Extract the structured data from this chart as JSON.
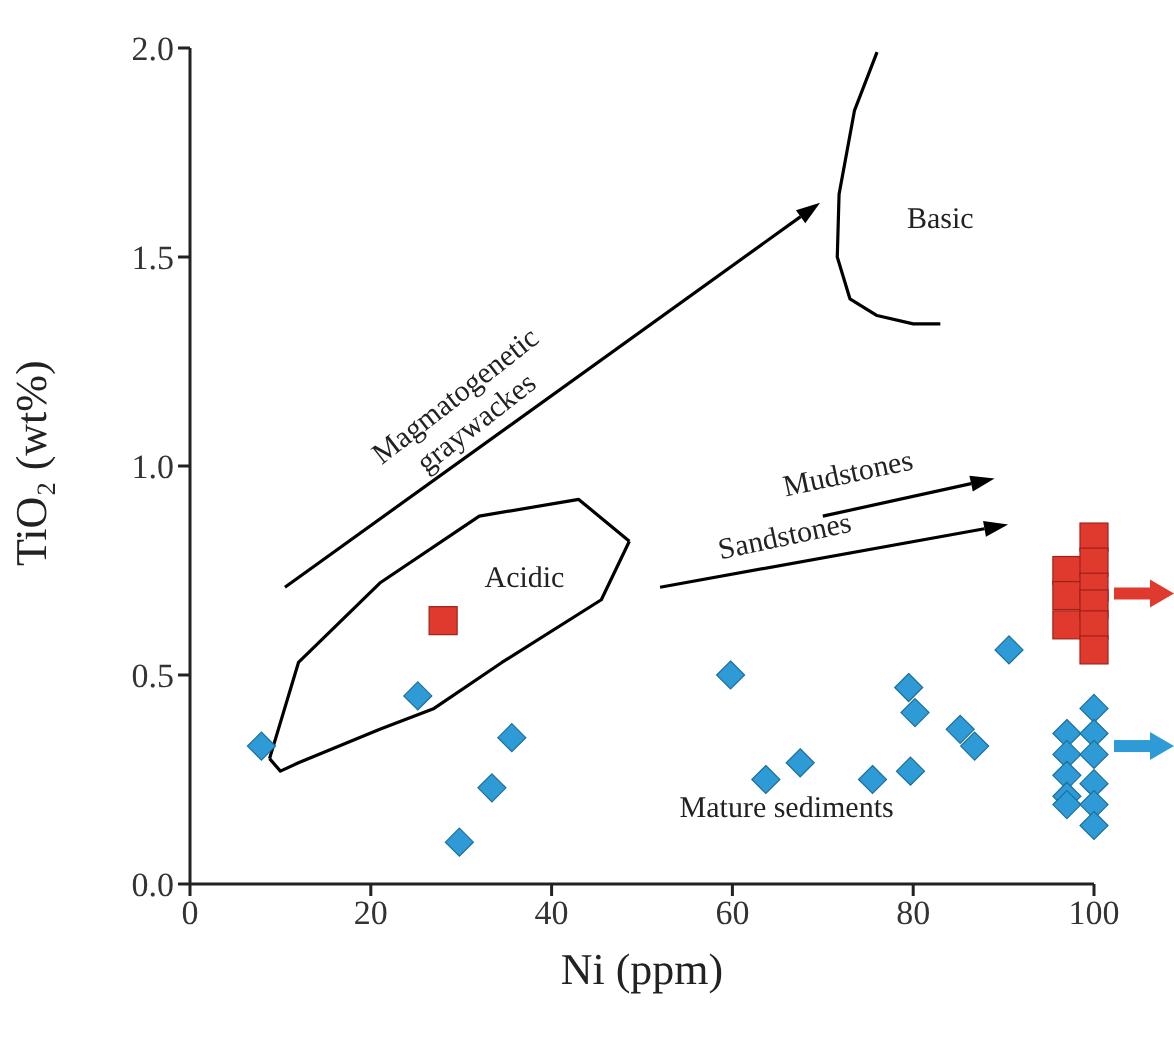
{
  "chart_data": {
    "type": "scatter",
    "xlabel": "Ni (ppm)",
    "ylabel": "TiO₂ (wt%)",
    "xlim": [
      0,
      100
    ],
    "ylim": [
      0,
      2.0
    ],
    "xticks": [
      0,
      20,
      40,
      60,
      80,
      100
    ],
    "yticks": [
      {
        "value": 0,
        "label": "0.0"
      },
      0.5,
      {
        "value": 1,
        "label": "1.0"
      },
      1.5,
      {
        "value": 2,
        "label": "2.0"
      }
    ],
    "series": [
      {
        "color": "#2e9bd6",
        "marker": "diamond",
        "x": [
          7.9,
          25.2,
          29.8,
          33.4,
          35.6,
          59.8,
          63.7,
          67.5,
          75.5,
          79.5,
          80.2,
          79.7,
          85.2,
          86.8,
          90.6,
          97,
          97,
          97,
          97,
          97,
          100,
          100,
          100,
          100,
          100,
          100
        ],
        "values": [
          0.33,
          0.45,
          0.1,
          0.23,
          0.35,
          0.5,
          0.25,
          0.29,
          0.25,
          0.47,
          0.41,
          0.27,
          0.37,
          0.33,
          0.56,
          0.36,
          0.31,
          0.26,
          0.21,
          0.19,
          0.42,
          0.36,
          0.31,
          0.24,
          0.19,
          0.14
        ]
      },
      {
        "color": "#e03a2e",
        "marker": "square",
        "x": [
          28,
          97,
          97,
          97,
          100,
          100,
          100,
          100,
          100,
          100
        ],
        "values": [
          0.63,
          0.75,
          0.69,
          0.62,
          0.83,
          0.77,
          0.71,
          0.67,
          0.62,
          0.56
        ]
      },
      {
        "type": "line",
        "color": "#000000",
        "marker": "none",
        "x": [
          8.8,
          12,
          21,
          32,
          43,
          48.6
        ],
        "values": [
          0.3,
          0.53,
          0.72,
          0.88,
          0.92,
          0.82
        ]
      },
      {
        "type": "line",
        "color": "#000000",
        "marker": "none",
        "x": [
          8.8,
          10,
          12,
          21,
          27,
          34.5,
          45.5,
          48.6
        ],
        "values": [
          0.3,
          0.27,
          0.29,
          0.37,
          0.42,
          0.53,
          0.68,
          0.82
        ]
      },
      {
        "type": "line",
        "color": "#000000",
        "marker": "none",
        "x": [
          76,
          73.5,
          71.8,
          71.6,
          73,
          76,
          80,
          83
        ],
        "values": [
          1.99,
          1.85,
          1.65,
          1.5,
          1.4,
          1.36,
          1.34,
          1.34
        ]
      }
    ],
    "annotations": [
      "Basic",
      "Acidic",
      "Magmatogenetic graywackes",
      "Mudstones",
      "Sandstones",
      "Mature sediments"
    ]
  }
}
